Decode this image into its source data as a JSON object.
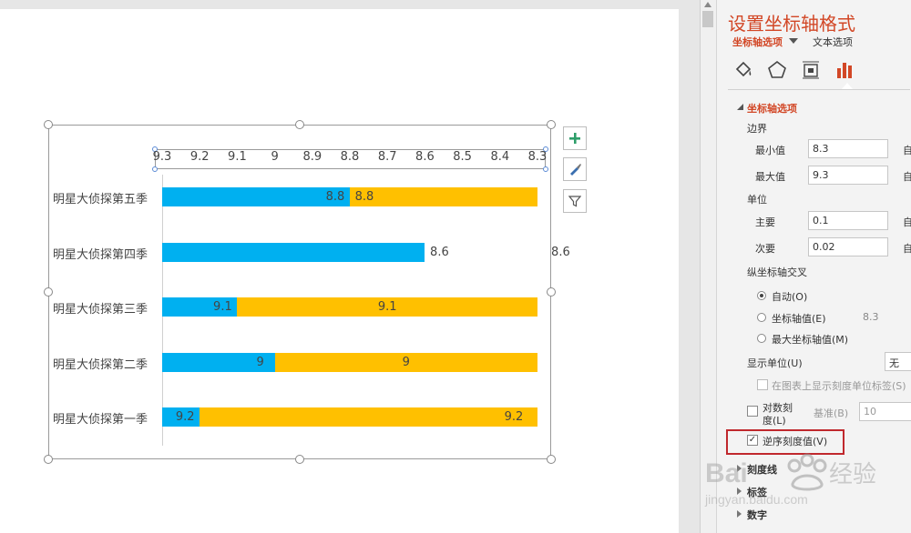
{
  "chart_data": {
    "type": "bar",
    "orientation": "horizontal",
    "axis_reversed": true,
    "xlim": [
      8.3,
      9.3
    ],
    "x_ticks": [
      "9.3",
      "9.2",
      "9.1",
      "9",
      "8.9",
      "8.8",
      "8.7",
      "8.6",
      "8.5",
      "8.4",
      "8.3"
    ],
    "categories": [
      "明星大侦探第五季",
      "明星大侦探第四季",
      "明星大侦探第三季",
      "明星大侦探第二季",
      "明星大侦探第一季"
    ],
    "series": [
      {
        "color": "#00b0f0",
        "values": [
          8.8,
          8.6,
          9.1,
          9,
          9.2
        ],
        "labels": [
          "8.8",
          "8.6",
          "9.1",
          "9",
          "9.2"
        ]
      },
      {
        "color": "#ffc000",
        "values": [
          8.8,
          8.6,
          9.1,
          9,
          9.2
        ],
        "labels": [
          "8.8",
          "8.6",
          "9.1",
          "9",
          "9.2"
        ]
      }
    ]
  },
  "pane": {
    "title": "设置坐标轴格式",
    "tab_axis_options": "坐标轴选项",
    "tab_text_options": "文本选项",
    "section_axis_options": "坐标轴选项",
    "bounds": "边界",
    "min_label": "最小值",
    "min_value": "8.3",
    "max_label": "最大值",
    "max_value": "9.3",
    "auto_short": "自",
    "units": "单位",
    "major_label": "主要",
    "major_value": "0.1",
    "minor_label": "次要",
    "minor_value": "0.02",
    "cross_title": "纵坐标轴交叉",
    "cross_auto": "自动(O)",
    "cross_value": "坐标轴值(E)",
    "cross_value_input": "8.3",
    "cross_max": "最大坐标轴值(M)",
    "display_units": "显示单位(U)",
    "display_units_value": "无",
    "show_units_label": "在图表上显示刻度单位标签(S)",
    "log_scale_line1": "对数刻",
    "log_scale_line2": "度(L)",
    "base_label": "基准(B)",
    "base_value": "10",
    "reverse_label": "逆序刻度值(V)",
    "tick_marks": "刻度线",
    "labels": "标签",
    "number": "数字"
  },
  "colors": {
    "accent": "#d24726",
    "blue_bar": "#00b0f0",
    "orange_bar": "#ffc000",
    "highlight": "#c0282d"
  },
  "icons": [
    "paint-bucket-icon",
    "pentagon-icon",
    "size-properties-icon",
    "bar-chart-icon",
    "plus-icon",
    "brush-icon",
    "filter-icon",
    "dropdown-arrow-icon"
  ]
}
